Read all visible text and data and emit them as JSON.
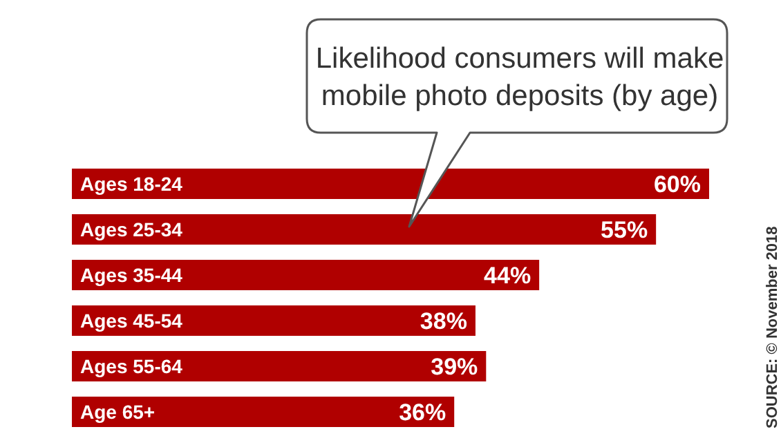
{
  "chart_data": {
    "type": "bar",
    "orientation": "horizontal",
    "title": "Likelihood consumers will make mobile photo deposits (by age)",
    "categories": [
      "Ages 18-24",
      "Ages 25-34",
      "Ages 35-44",
      "Ages 45-54",
      "Ages 55-64",
      "Age 65+"
    ],
    "values": [
      60,
      55,
      44,
      38,
      39,
      36
    ],
    "value_labels": [
      "60%",
      "55%",
      "44%",
      "38%",
      "39%",
      "36%"
    ],
    "color": "#b00000",
    "annotations": [
      "SOURCE: © November 2018"
    ],
    "legend": false,
    "grid": false
  }
}
